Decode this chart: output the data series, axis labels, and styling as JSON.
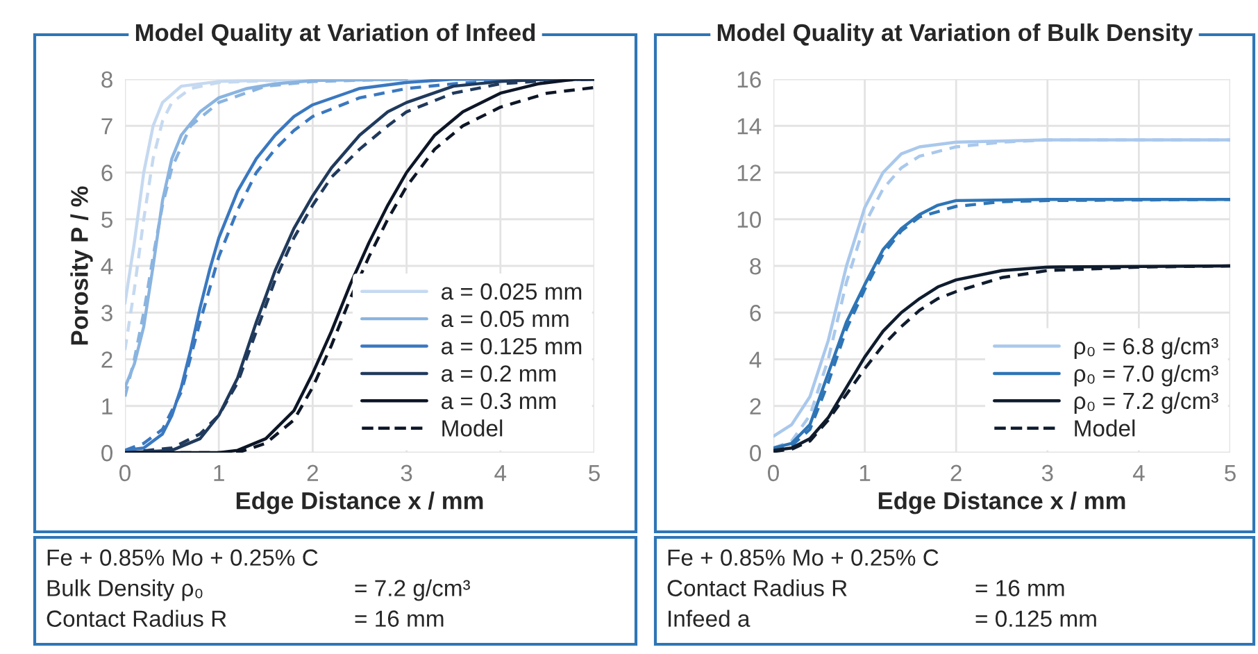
{
  "chart_data": [
    {
      "type": "line",
      "title": "Model Quality at Variation of Infeed",
      "xlabel": "Edge Distance x / mm",
      "ylabel": "Porosity P / %",
      "xlim": [
        0,
        5
      ],
      "xticks": [
        0,
        1,
        2,
        3,
        4,
        5
      ],
      "ylim": [
        0,
        8
      ],
      "yticks": [
        0,
        1,
        2,
        3,
        4,
        5,
        6,
        7,
        8
      ],
      "grid": true,
      "legend": "bottom right",
      "marker": "none",
      "annotations": [
        "Fe + 0.85% Mo + 0.25% C",
        "Bulk Density ρ₀",
        "= 7.2 g/cm³",
        "Contact Radius R",
        "= 16 mm"
      ],
      "series": [
        {
          "name": "a = 0.025 mm",
          "color": "#c5d9f0",
          "line_style": "solid",
          "x": [
            0,
            0.1,
            0.2,
            0.3,
            0.4,
            0.6,
            1.0,
            2,
            5
          ],
          "values": [
            3.2,
            4.5,
            6.0,
            7.0,
            7.5,
            7.85,
            7.95,
            8,
            8
          ]
        },
        {
          "name": "a = 0.05 mm",
          "color": "#8ab4e0",
          "line_style": "solid",
          "x": [
            0,
            0.1,
            0.2,
            0.3,
            0.4,
            0.5,
            0.6,
            0.8,
            1.0,
            1.3,
            1.6,
            2,
            3
          ],
          "values": [
            1.4,
            1.9,
            2.7,
            4.0,
            5.4,
            6.3,
            6.8,
            7.3,
            7.6,
            7.8,
            7.9,
            7.97,
            8
          ]
        },
        {
          "name": "a = 0.125 mm",
          "color": "#3a78c0",
          "line_style": "solid",
          "x": [
            0,
            0.2,
            0.4,
            0.5,
            0.6,
            0.7,
            0.8,
            0.9,
            1.0,
            1.2,
            1.4,
            1.6,
            1.8,
            2.0,
            2.5,
            3,
            3.5,
            5
          ],
          "values": [
            0.05,
            0.1,
            0.4,
            0.8,
            1.4,
            2.2,
            3.1,
            3.9,
            4.6,
            5.6,
            6.3,
            6.8,
            7.2,
            7.45,
            7.8,
            7.93,
            8,
            8
          ]
        },
        {
          "name": "a = 0.2 mm",
          "color": "#203a5c",
          "line_style": "solid",
          "x": [
            0,
            0.5,
            0.8,
            1.0,
            1.2,
            1.4,
            1.6,
            1.8,
            2.0,
            2.2,
            2.5,
            2.8,
            3.0,
            3.5,
            4.0,
            4.5,
            5
          ],
          "values": [
            0,
            0.05,
            0.3,
            0.8,
            1.6,
            2.8,
            3.9,
            4.8,
            5.5,
            6.1,
            6.8,
            7.3,
            7.5,
            7.85,
            7.95,
            8,
            8
          ]
        },
        {
          "name": "a = 0.3 mm",
          "color": "#0d1626",
          "line_style": "solid",
          "x": [
            0,
            1.0,
            1.2,
            1.5,
            1.8,
            2.0,
            2.2,
            2.4,
            2.6,
            2.8,
            3.0,
            3.3,
            3.6,
            4.0,
            4.4,
            4.8,
            5
          ],
          "values": [
            0,
            0,
            0.05,
            0.3,
            0.9,
            1.7,
            2.6,
            3.6,
            4.5,
            5.3,
            6.0,
            6.8,
            7.3,
            7.7,
            7.9,
            8,
            8
          ]
        },
        {
          "color": "#c5d9f0",
          "line_style": "dashed",
          "x": [
            0,
            0.1,
            0.2,
            0.3,
            0.4,
            0.5,
            0.7,
            1,
            2,
            5
          ],
          "values": [
            2.2,
            3.5,
            5.0,
            6.3,
            7.1,
            7.5,
            7.8,
            7.93,
            8,
            8
          ]
        },
        {
          "color": "#8ab4e0",
          "line_style": "dashed",
          "x": [
            0,
            0.1,
            0.2,
            0.3,
            0.4,
            0.5,
            0.7,
            1.0,
            1.5,
            2,
            3,
            5
          ],
          "values": [
            1.2,
            2.0,
            3.0,
            4.2,
            5.3,
            6.1,
            7.0,
            7.5,
            7.85,
            7.95,
            8,
            8
          ]
        },
        {
          "color": "#3a78c0",
          "line_style": "dashed",
          "x": [
            0,
            0.2,
            0.4,
            0.6,
            0.8,
            1.0,
            1.2,
            1.4,
            1.6,
            1.8,
            2.0,
            2.5,
            3,
            3.5,
            4,
            5
          ],
          "values": [
            0.05,
            0.2,
            0.5,
            1.3,
            2.8,
            4.2,
            5.2,
            6.0,
            6.5,
            6.9,
            7.2,
            7.6,
            7.8,
            7.9,
            7.97,
            8
          ]
        },
        {
          "color": "#203a5c",
          "line_style": "dashed",
          "x": [
            0,
            0.5,
            0.8,
            1.0,
            1.2,
            1.4,
            1.6,
            1.8,
            2.0,
            2.2,
            2.5,
            2.8,
            3.0,
            3.5,
            4,
            4.5,
            5
          ],
          "values": [
            0,
            0.1,
            0.4,
            0.8,
            1.5,
            2.6,
            3.7,
            4.6,
            5.3,
            5.9,
            6.5,
            7.0,
            7.3,
            7.7,
            7.9,
            7.97,
            8
          ]
        },
        {
          "name": "Model",
          "color": "#0d1626",
          "line_style": "dashed",
          "x": [
            0,
            1.2,
            1.5,
            1.8,
            2.0,
            2.2,
            2.4,
            2.6,
            2.8,
            3.0,
            3.3,
            3.6,
            4.0,
            4.5,
            5
          ],
          "values": [
            0,
            0,
            0.2,
            0.7,
            1.4,
            2.3,
            3.3,
            4.2,
            5.0,
            5.7,
            6.5,
            7.0,
            7.4,
            7.7,
            7.82
          ]
        }
      ]
    },
    {
      "type": "line",
      "title": "Model Quality at Variation of Bulk Density",
      "xlabel": "Edge Distance x / mm",
      "xlim": [
        0,
        5
      ],
      "xticks": [
        0,
        1,
        2,
        3,
        4,
        5
      ],
      "ylim": [
        0,
        16
      ],
      "yticks": [
        0,
        2,
        4,
        6,
        8,
        10,
        12,
        14,
        16
      ],
      "grid": true,
      "legend": "bottom right",
      "marker": "none",
      "annotations": [
        "Fe + 0.85% Mo + 0.25% C",
        "Contact Radius R",
        "= 16 mm",
        "Infeed a",
        "= 0.125 mm"
      ],
      "series": [
        {
          "name": "ρ₀ = 6.8 g/cm³",
          "color": "#a9c8ec",
          "line_style": "solid",
          "x": [
            0,
            0.2,
            0.4,
            0.6,
            0.8,
            1.0,
            1.2,
            1.4,
            1.6,
            2,
            3,
            5
          ],
          "values": [
            0.7,
            1.2,
            2.4,
            4.8,
            8.0,
            10.5,
            12.0,
            12.8,
            13.1,
            13.3,
            13.4,
            13.4
          ]
        },
        {
          "name": "ρ₀ = 7.0 g/cm³",
          "color": "#2e75b6",
          "line_style": "solid",
          "x": [
            0,
            0.2,
            0.4,
            0.6,
            0.8,
            1.0,
            1.2,
            1.4,
            1.6,
            1.8,
            2,
            3,
            5
          ],
          "values": [
            0.2,
            0.4,
            1.2,
            3.4,
            5.6,
            7.2,
            8.7,
            9.6,
            10.2,
            10.6,
            10.8,
            10.85,
            10.85
          ]
        },
        {
          "name": "ρ₀ = 7.2 g/cm³",
          "color": "#0f1c2e",
          "line_style": "solid",
          "x": [
            0,
            0.2,
            0.4,
            0.6,
            0.8,
            1.0,
            1.2,
            1.4,
            1.6,
            1.8,
            2,
            2.5,
            3,
            5
          ],
          "values": [
            0.1,
            0.2,
            0.6,
            1.5,
            2.8,
            4.1,
            5.2,
            6.0,
            6.6,
            7.1,
            7.4,
            7.8,
            7.95,
            8.0
          ]
        },
        {
          "color": "#a9c8ec",
          "line_style": "dashed",
          "x": [
            0,
            0.2,
            0.4,
            0.6,
            0.8,
            1.0,
            1.2,
            1.4,
            1.6,
            2,
            2.5,
            3,
            5
          ],
          "values": [
            0.2,
            0.5,
            1.6,
            4.0,
            7.3,
            9.8,
            11.3,
            12.2,
            12.7,
            13.1,
            13.3,
            13.4,
            13.4
          ]
        },
        {
          "color": "#2e75b6",
          "line_style": "dashed",
          "x": [
            0,
            0.2,
            0.4,
            0.6,
            0.8,
            1.0,
            1.2,
            1.4,
            1.6,
            2,
            2.5,
            3,
            5
          ],
          "values": [
            0.1,
            0.3,
            1.0,
            3.0,
            5.3,
            7.0,
            8.5,
            9.5,
            10.1,
            10.55,
            10.75,
            10.8,
            10.85
          ]
        },
        {
          "name": "Model",
          "color": "#0f1c2e",
          "line_style": "dashed",
          "x": [
            0,
            0.2,
            0.4,
            0.6,
            0.8,
            1.0,
            1.2,
            1.4,
            1.6,
            1.8,
            2,
            2.5,
            3,
            4,
            5
          ],
          "values": [
            0.05,
            0.15,
            0.5,
            1.4,
            2.5,
            3.6,
            4.6,
            5.4,
            6.1,
            6.6,
            6.9,
            7.5,
            7.8,
            7.95,
            8.0
          ]
        }
      ]
    }
  ]
}
